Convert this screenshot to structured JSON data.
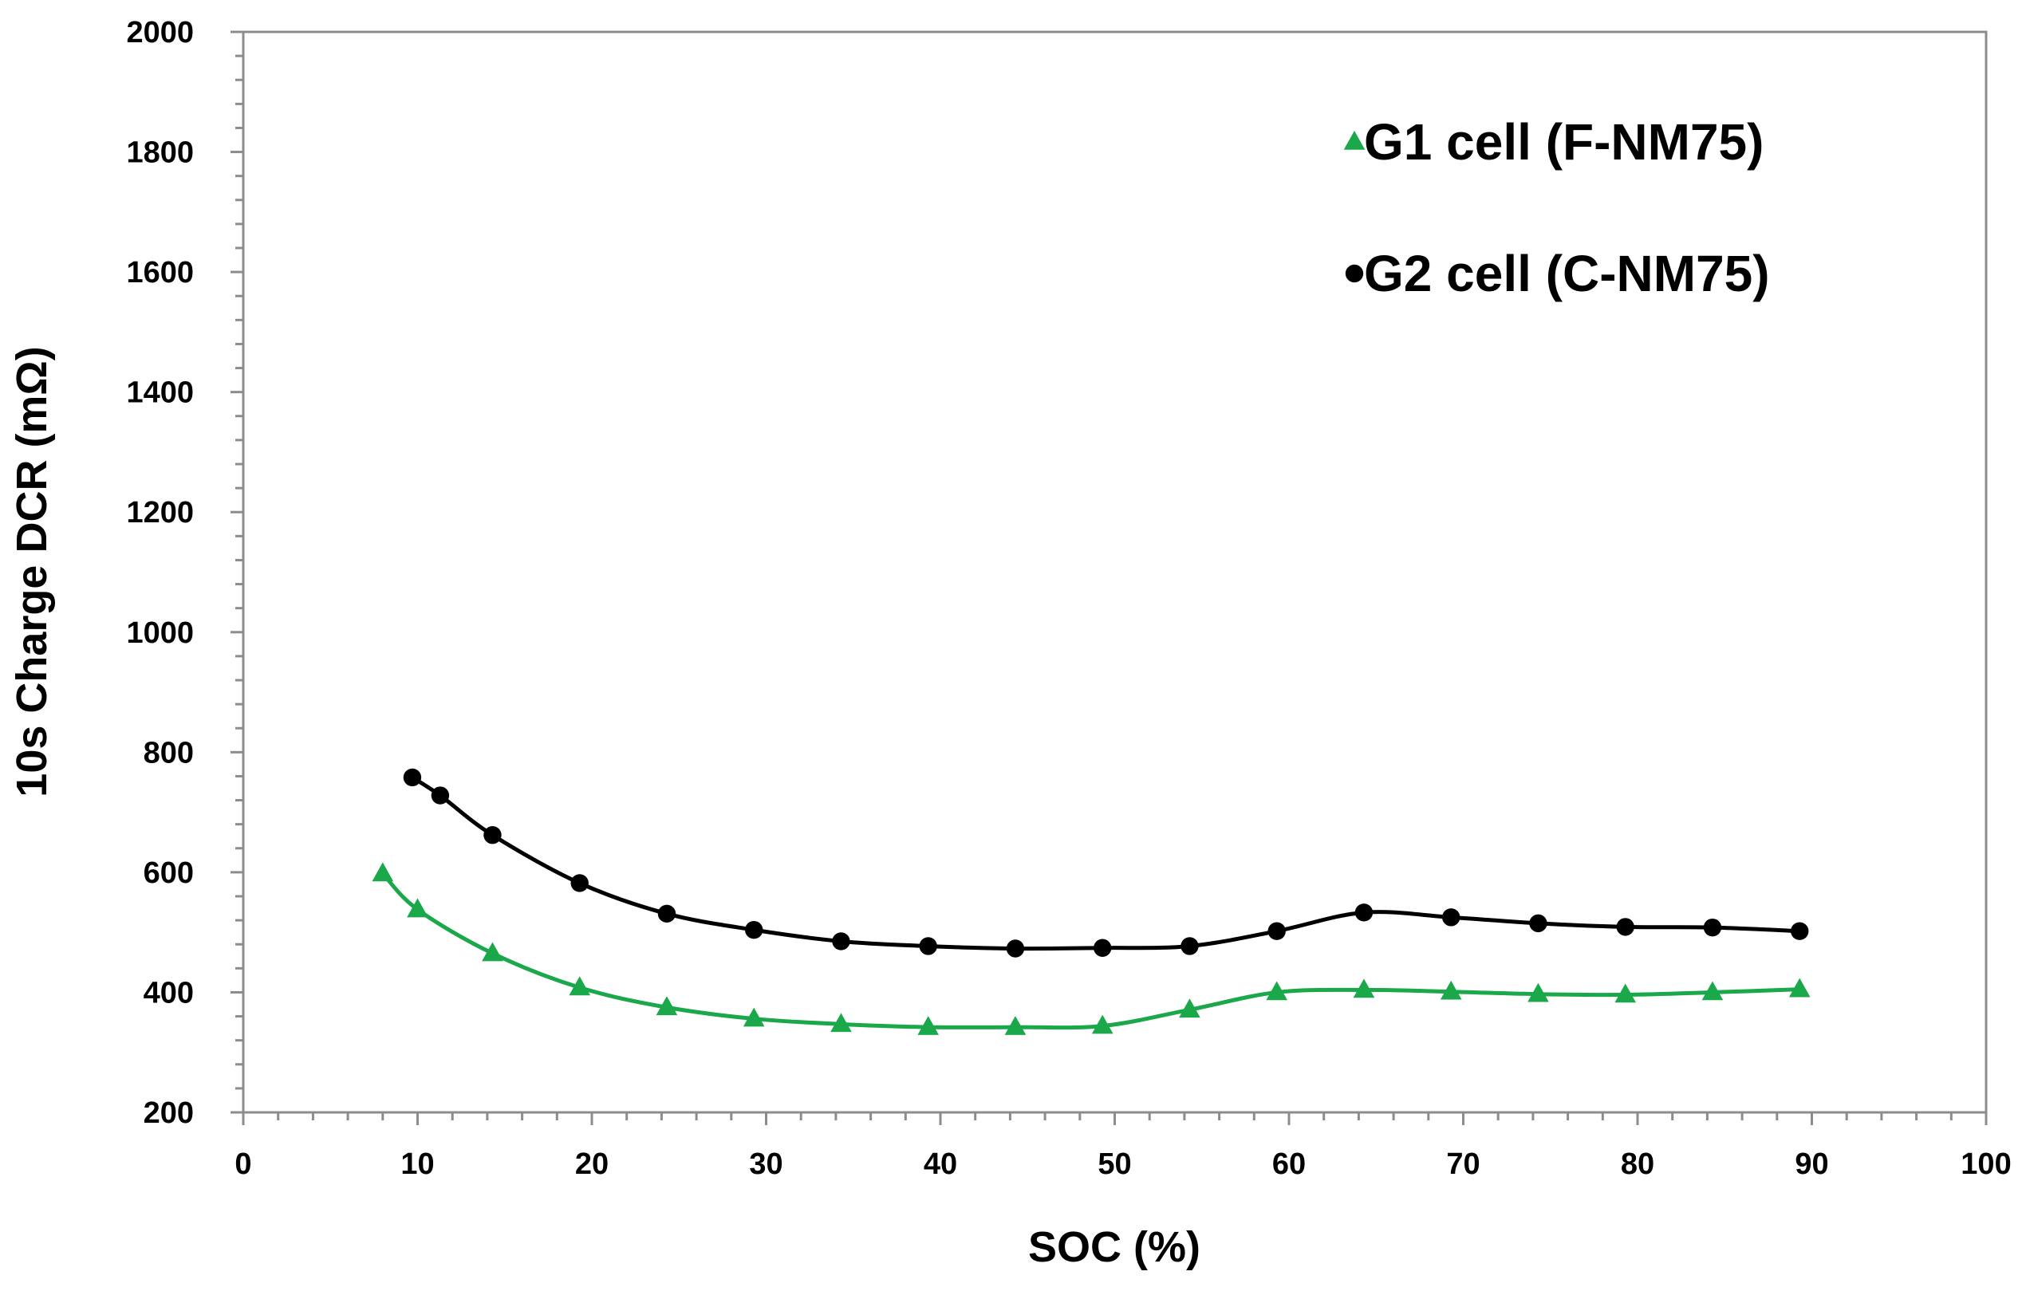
{
  "chart_data": {
    "type": "line",
    "title": "",
    "xlabel": "SOC (%)",
    "ylabel": "10s Charge DCR (mΩ)",
    "xlim": [
      0,
      100
    ],
    "ylim": [
      200,
      2000
    ],
    "xticks": [
      0,
      10,
      20,
      30,
      40,
      50,
      60,
      70,
      80,
      90,
      100
    ],
    "yticks": [
      200,
      400,
      600,
      800,
      1000,
      1200,
      1400,
      1600,
      1800,
      2000
    ],
    "xtick_labels": [
      "0",
      "10",
      "20",
      "30",
      "40",
      "50",
      "60",
      "70",
      "80",
      "90",
      "100"
    ],
    "ytick_labels": [
      "200",
      "400",
      "600",
      "800",
      "1000",
      "1200",
      "1400",
      "1600",
      "1800",
      "2000"
    ],
    "grid": false,
    "legend_position": "top-right",
    "series": [
      {
        "name": "G1 cell (F-NM75)",
        "color": "#1aa84a",
        "marker": "triangle",
        "x": [
          8,
          10,
          14.3,
          19.3,
          24.3,
          29.3,
          34.3,
          39.3,
          44.3,
          49.3,
          54.3,
          59.3,
          64.3,
          69.3,
          74.3,
          79.3,
          84.3,
          89.3
        ],
        "y": [
          598,
          538,
          465,
          408,
          375,
          356,
          347,
          342,
          342,
          344,
          371,
          400,
          404,
          401,
          397,
          396,
          400,
          405
        ]
      },
      {
        "name": "G2 cell (C-NM75)",
        "color": "#000000",
        "marker": "circle",
        "x": [
          9.7,
          11.3,
          14.3,
          19.3,
          24.3,
          29.3,
          34.3,
          39.3,
          44.3,
          49.3,
          54.3,
          59.3,
          64.3,
          69.3,
          74.3,
          79.3,
          84.3,
          89.3
        ],
        "y": [
          758,
          728,
          662,
          582,
          531,
          504,
          485,
          477,
          473,
          474,
          477,
          502,
          533,
          525,
          515,
          509,
          508,
          502
        ]
      }
    ]
  }
}
